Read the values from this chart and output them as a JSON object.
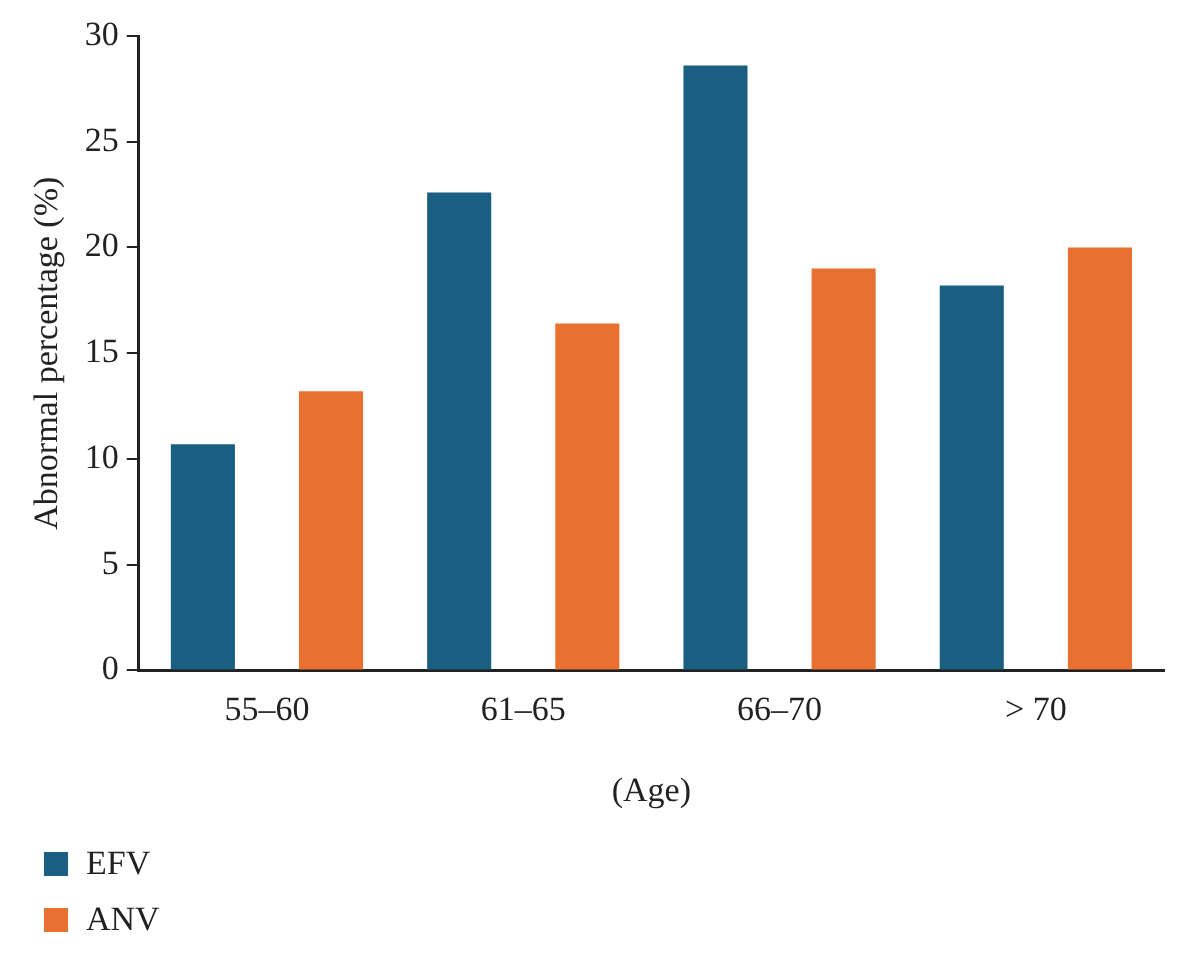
{
  "chart_data": {
    "type": "bar",
    "xlabel": "(Age)",
    "ylabel": "Abnormal percentage (%)",
    "categories": [
      "55–60",
      "61–65",
      "66–70",
      "> 70"
    ],
    "series": [
      {
        "name": "EFV",
        "color": "#1a5e82",
        "values": [
          10.7,
          22.6,
          28.6,
          18.2
        ]
      },
      {
        "name": "ANV",
        "color": "#e87131",
        "values": [
          13.2,
          16.4,
          19.0,
          20.0
        ]
      }
    ],
    "ylim": [
      0,
      30
    ],
    "yticks": [
      0,
      5,
      10,
      15,
      20,
      25,
      30
    ],
    "grid": false,
    "legend": "bottom left"
  }
}
